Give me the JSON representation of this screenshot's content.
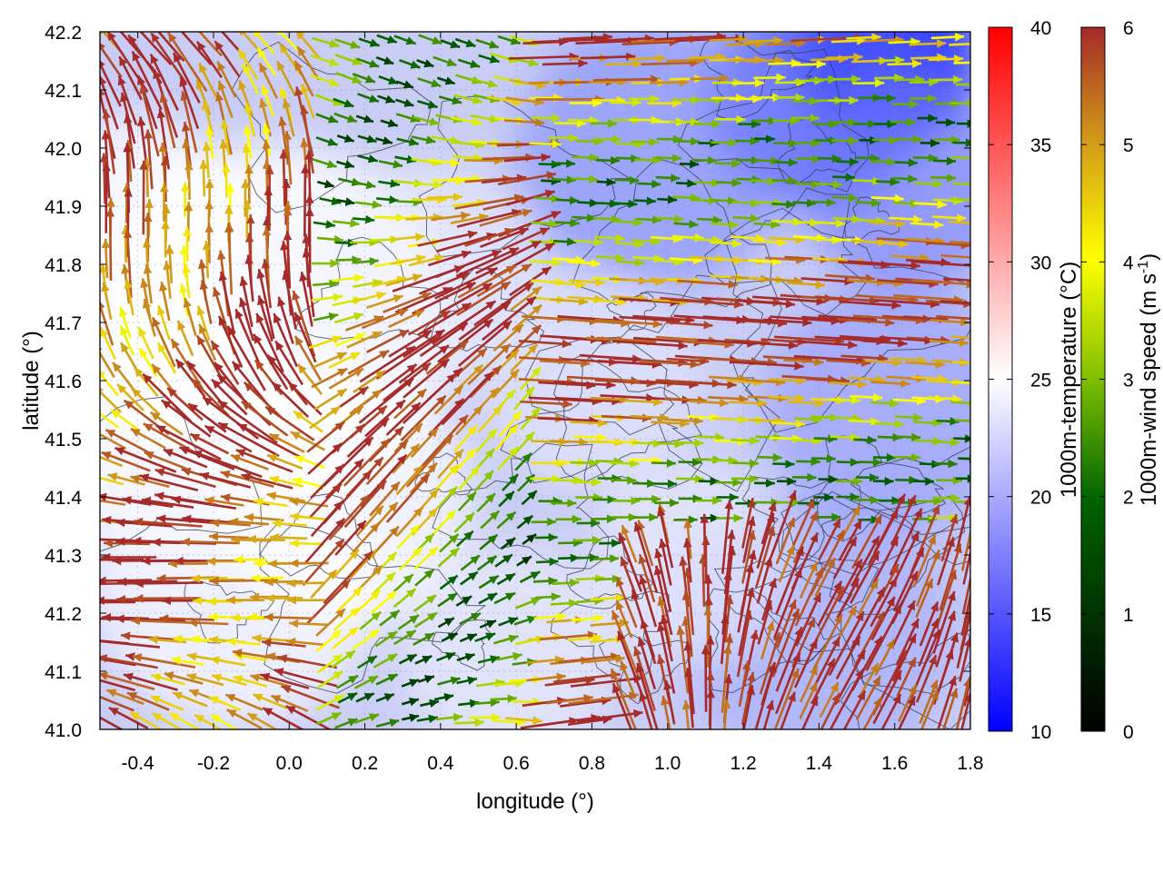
{
  "plot": {
    "xlabel": "longitude (°)",
    "ylabel": "latitude (°)",
    "xlim": [
      -0.5,
      1.8
    ],
    "ylim": [
      41.0,
      42.2
    ],
    "xticks": [
      -0.4,
      -0.2,
      0.0,
      0.2,
      0.4,
      0.6,
      0.8,
      1.0,
      1.2,
      1.4,
      1.6,
      1.8
    ],
    "xtick_labels": [
      "-0.4",
      "-0.2",
      "0.0",
      "0.2",
      "0.4",
      "0.6",
      "0.8",
      "1.0",
      "1.2",
      "1.4",
      "1.6",
      "1.8"
    ],
    "yticks": [
      41.0,
      41.1,
      41.2,
      41.3,
      41.4,
      41.5,
      41.6,
      41.7,
      41.8,
      41.9,
      42.0,
      42.1,
      42.2
    ],
    "ytick_labels": [
      "41.0",
      "41.1",
      "41.2",
      "41.3",
      "41.4",
      "41.5",
      "41.6",
      "41.7",
      "41.8",
      "41.9",
      "42.0",
      "42.1",
      "42.2"
    ],
    "grid": true
  },
  "temperature_colorbar": {
    "label": "1000m-temperature (°C)",
    "range": [
      10,
      40
    ],
    "ticks": [
      10,
      15,
      20,
      25,
      30,
      35,
      40
    ],
    "tick_labels": [
      "10",
      "15",
      "20",
      "25",
      "30",
      "35",
      "40"
    ],
    "colors": [
      "#0000ff",
      "#ffffff",
      "#ff0000"
    ]
  },
  "wind_colorbar": {
    "label": "1000m-wind speed (m s-1)",
    "label_main": "1000m-wind speed (m s",
    "label_sup": "-1",
    "label_end": ")",
    "range": [
      0,
      6
    ],
    "ticks": [
      0,
      1,
      2,
      3,
      4,
      5,
      6
    ],
    "tick_labels": [
      "0",
      "1",
      "2",
      "3",
      "4",
      "5",
      "6"
    ],
    "colors": [
      "#000000",
      "#006400",
      "#7fbf00",
      "#ffff00",
      "#d4a017",
      "#b22222"
    ]
  },
  "field": {
    "description_only_visual": true,
    "cold_region_color": "#2b3cff",
    "warm_region_color": "#ffffff"
  }
}
